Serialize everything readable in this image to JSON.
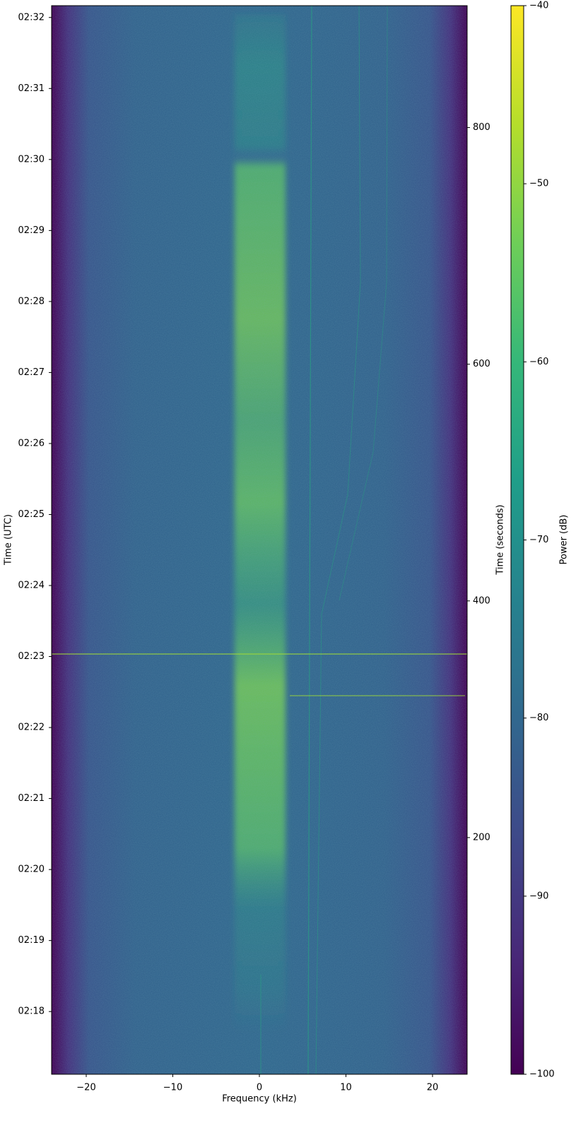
{
  "chart_data": {
    "type": "spectrogram",
    "xlabel": "Frequency (kHz)",
    "ylabel": "Time (UTC)",
    "y2label": "Time (seconds)",
    "xlim": [
      -24,
      24
    ],
    "xticks": [
      {
        "value": -20,
        "label": "−20"
      },
      {
        "value": -10,
        "label": "−10"
      },
      0,
      10,
      20
    ],
    "ylim": [
      0,
      903
    ],
    "yticks": [
      {
        "value": 53,
        "label": "02:18"
      },
      {
        "value": 113,
        "label": "02:19"
      },
      {
        "value": 173,
        "label": "02:20"
      },
      {
        "value": 233,
        "label": "02:21"
      },
      {
        "value": 293,
        "label": "02:22"
      },
      {
        "value": 353,
        "label": "02:23"
      },
      {
        "value": 413,
        "label": "02:24"
      },
      {
        "value": 473,
        "label": "02:25"
      },
      {
        "value": 533,
        "label": "02:26"
      },
      {
        "value": 593,
        "label": "02:27"
      },
      {
        "value": 653,
        "label": "02:28"
      },
      {
        "value": 713,
        "label": "02:29"
      },
      {
        "value": 773,
        "label": "02:30"
      },
      {
        "value": 833,
        "label": "02:31"
      },
      {
        "value": 893,
        "label": "02:32"
      }
    ],
    "y2lim": [
      0,
      903
    ],
    "y2ticks": [
      200,
      400,
      600,
      800
    ],
    "colormap": "viridis",
    "colorbar": {
      "label": "Power (dB)",
      "lim": [
        -100,
        -40
      ],
      "ticks": [
        {
          "value": -100,
          "label": "−100"
        },
        {
          "value": -90,
          "label": "−90"
        },
        {
          "value": -80,
          "label": "−80"
        },
        {
          "value": -70,
          "label": "−70"
        },
        {
          "value": -60,
          "label": "−60"
        },
        {
          "value": -50,
          "label": "−50"
        },
        {
          "value": -40,
          "label": "−40"
        }
      ]
    }
  }
}
